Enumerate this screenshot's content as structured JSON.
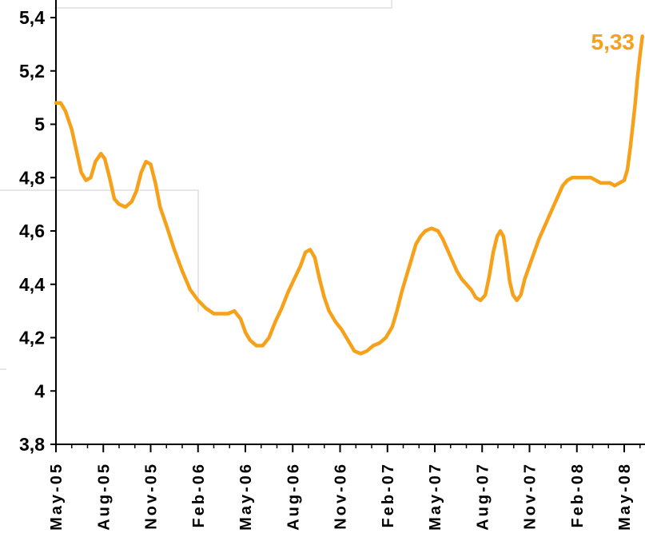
{
  "chart_data": {
    "type": "line",
    "title": "",
    "xlabel": "",
    "ylabel": "",
    "ylim": [
      3.8,
      5.4
    ],
    "y_ticks": [
      3.8,
      4,
      4.2,
      4.4,
      4.6,
      4.8,
      5,
      5.2,
      5.4
    ],
    "y_tick_labels": [
      "3,8",
      "4",
      "4,2",
      "4,4",
      "4,6",
      "4,8",
      "5",
      "5,2",
      "5,4"
    ],
    "x_tick_labels": [
      "May-05",
      "Aug-05",
      "Nov-05",
      "Feb-06",
      "May-06",
      "Aug-06",
      "Nov-06",
      "Feb-07",
      "May-07",
      "Aug-07",
      "Nov-07",
      "Feb-08",
      "May-08"
    ],
    "x_unit": "month index from May-05 (0 = May-05, 36 = May-08)",
    "line_color": "#f7a11a",
    "grid": false,
    "annotation": {
      "text": "5,33",
      "x": 37.1,
      "y": 5.33,
      "color": "#f7a11a"
    },
    "series": [
      {
        "points": [
          [
            0.0,
            5.08
          ],
          [
            0.3,
            5.08
          ],
          [
            0.6,
            5.05
          ],
          [
            1.0,
            4.98
          ],
          [
            1.3,
            4.9
          ],
          [
            1.6,
            4.82
          ],
          [
            1.9,
            4.79
          ],
          [
            2.2,
            4.8
          ],
          [
            2.5,
            4.86
          ],
          [
            2.85,
            4.89
          ],
          [
            3.1,
            4.87
          ],
          [
            3.4,
            4.8
          ],
          [
            3.7,
            4.72
          ],
          [
            4.0,
            4.7
          ],
          [
            4.4,
            4.69
          ],
          [
            4.8,
            4.71
          ],
          [
            5.1,
            4.75
          ],
          [
            5.4,
            4.82
          ],
          [
            5.7,
            4.86
          ],
          [
            6.0,
            4.85
          ],
          [
            6.3,
            4.78
          ],
          [
            6.6,
            4.69
          ],
          [
            7.0,
            4.62
          ],
          [
            7.5,
            4.53
          ],
          [
            8.0,
            4.45
          ],
          [
            8.5,
            4.38
          ],
          [
            9.0,
            4.34
          ],
          [
            9.5,
            4.31
          ],
          [
            10.0,
            4.29
          ],
          [
            10.5,
            4.29
          ],
          [
            10.9,
            4.29
          ],
          [
            11.3,
            4.3
          ],
          [
            11.7,
            4.27
          ],
          [
            12.0,
            4.22
          ],
          [
            12.3,
            4.19
          ],
          [
            12.7,
            4.17
          ],
          [
            13.1,
            4.17
          ],
          [
            13.5,
            4.2
          ],
          [
            13.9,
            4.26
          ],
          [
            14.3,
            4.31
          ],
          [
            14.7,
            4.37
          ],
          [
            15.1,
            4.42
          ],
          [
            15.5,
            4.47
          ],
          [
            15.8,
            4.52
          ],
          [
            16.1,
            4.53
          ],
          [
            16.4,
            4.5
          ],
          [
            16.7,
            4.42
          ],
          [
            17.0,
            4.35
          ],
          [
            17.3,
            4.3
          ],
          [
            17.7,
            4.26
          ],
          [
            18.1,
            4.23
          ],
          [
            18.5,
            4.19
          ],
          [
            18.9,
            4.15
          ],
          [
            19.3,
            4.14
          ],
          [
            19.7,
            4.15
          ],
          [
            20.1,
            4.17
          ],
          [
            20.5,
            4.18
          ],
          [
            20.9,
            4.2
          ],
          [
            21.3,
            4.24
          ],
          [
            21.6,
            4.3
          ],
          [
            21.9,
            4.37
          ],
          [
            22.2,
            4.43
          ],
          [
            22.5,
            4.49
          ],
          [
            22.8,
            4.55
          ],
          [
            23.1,
            4.58
          ],
          [
            23.4,
            4.6
          ],
          [
            23.8,
            4.61
          ],
          [
            24.2,
            4.6
          ],
          [
            24.5,
            4.57
          ],
          [
            24.8,
            4.53
          ],
          [
            25.1,
            4.49
          ],
          [
            25.4,
            4.45
          ],
          [
            25.7,
            4.42
          ],
          [
            26.0,
            4.4
          ],
          [
            26.3,
            4.38
          ],
          [
            26.6,
            4.35
          ],
          [
            26.9,
            4.34
          ],
          [
            27.2,
            4.36
          ],
          [
            27.45,
            4.43
          ],
          [
            27.7,
            4.52
          ],
          [
            27.95,
            4.58
          ],
          [
            28.15,
            4.6
          ],
          [
            28.35,
            4.58
          ],
          [
            28.55,
            4.5
          ],
          [
            28.75,
            4.41
          ],
          [
            28.95,
            4.36
          ],
          [
            29.2,
            4.34
          ],
          [
            29.45,
            4.36
          ],
          [
            29.7,
            4.42
          ],
          [
            30.0,
            4.47
          ],
          [
            30.3,
            4.52
          ],
          [
            30.6,
            4.57
          ],
          [
            30.9,
            4.61
          ],
          [
            31.2,
            4.65
          ],
          [
            31.5,
            4.69
          ],
          [
            31.8,
            4.73
          ],
          [
            32.1,
            4.77
          ],
          [
            32.4,
            4.79
          ],
          [
            32.7,
            4.8
          ],
          [
            33.0,
            4.8
          ],
          [
            33.3,
            4.8
          ],
          [
            33.6,
            4.8
          ],
          [
            33.9,
            4.8
          ],
          [
            34.2,
            4.79
          ],
          [
            34.5,
            4.78
          ],
          [
            34.8,
            4.78
          ],
          [
            35.1,
            4.78
          ],
          [
            35.4,
            4.77
          ],
          [
            35.7,
            4.78
          ],
          [
            36.0,
            4.79
          ],
          [
            36.2,
            4.83
          ],
          [
            36.4,
            4.92
          ],
          [
            36.55,
            5.0
          ],
          [
            36.7,
            5.08
          ],
          [
            36.85,
            5.18
          ],
          [
            37.0,
            5.26
          ],
          [
            37.15,
            5.33
          ]
        ]
      }
    ]
  }
}
